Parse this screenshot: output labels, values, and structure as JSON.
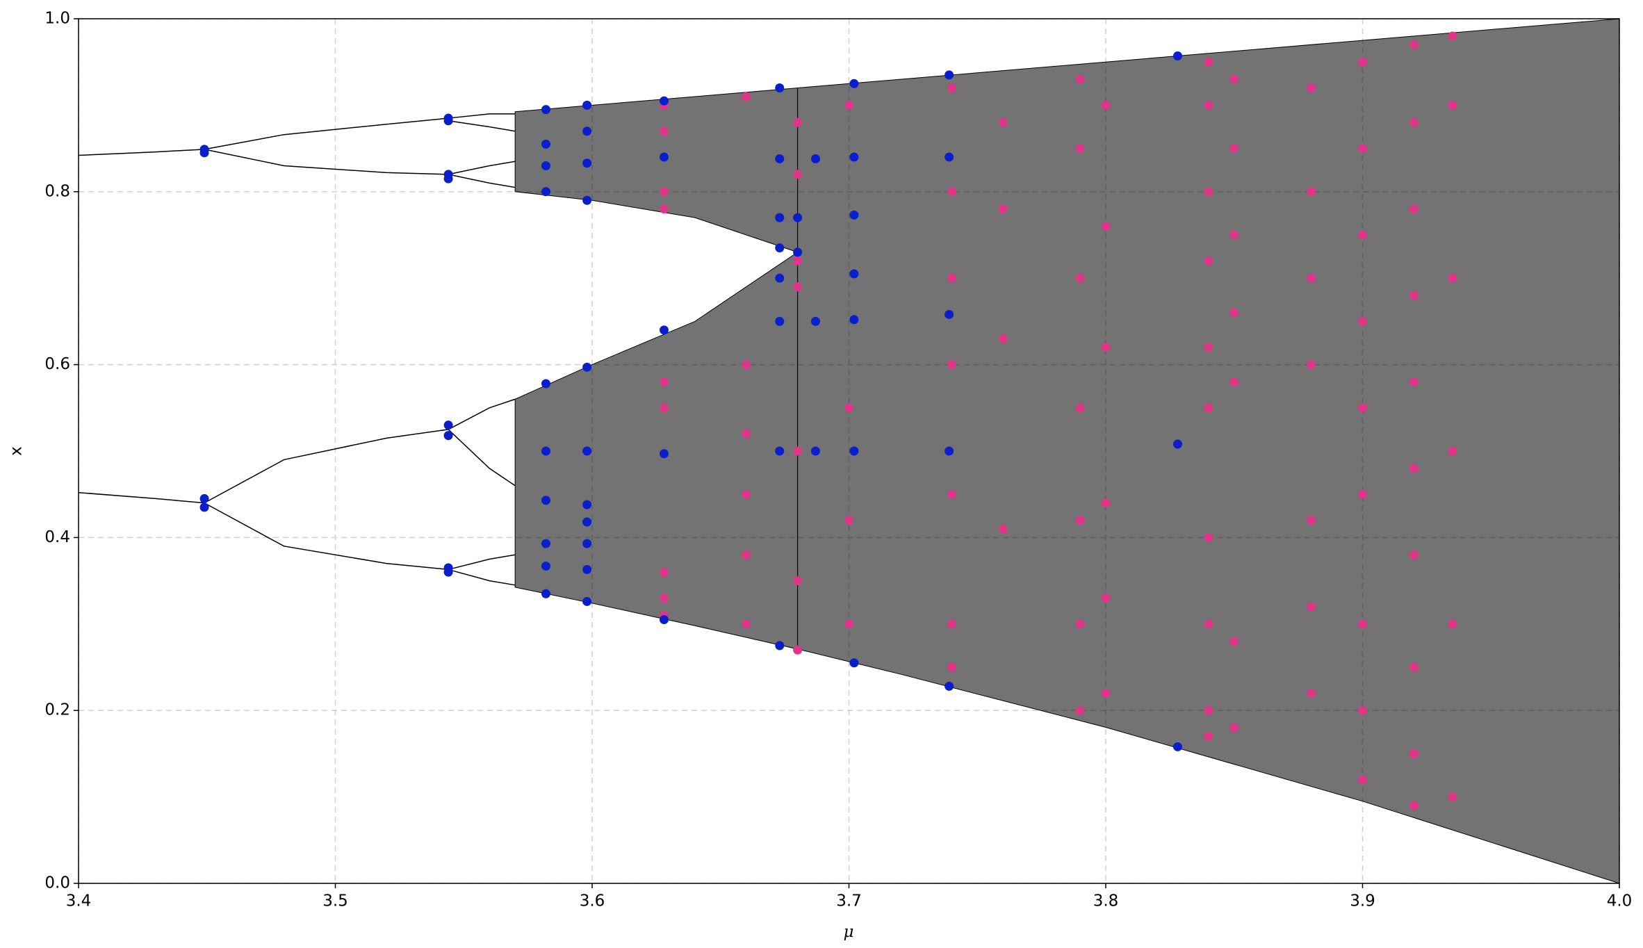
{
  "chart_data": {
    "type": "scatter",
    "x_label": "μ",
    "y_label": "x",
    "xlim": [
      3.4,
      4.0
    ],
    "xticks": [
      3.4,
      3.5,
      3.6,
      3.7,
      3.8,
      3.9,
      {
        "value": 4.0,
        "label": "4.0"
      }
    ],
    "ylim": [
      0,
      1
    ],
    "yticks": [
      {
        "value": 0,
        "label": "0.0"
      },
      0.2,
      0.4,
      0.6,
      0.8,
      {
        "value": 1,
        "label": "1.0"
      }
    ],
    "grid": true,
    "series": [
      {
        "type": "area",
        "color": "#000000",
        "x": [
          3.57,
          3.6,
          3.64,
          3.68
        ],
        "values": [
          0.8925,
          0.9,
          0.91,
          0.92
        ],
        "base": [
          0.8,
          0.79,
          0.77,
          0.73
        ]
      },
      {
        "type": "area",
        "color": "#000000",
        "x": [
          3.57,
          3.6,
          3.64,
          3.68
        ],
        "values": [
          0.56,
          0.6,
          0.65,
          0.73
        ],
        "base": [
          0.3425,
          0.324,
          0.298,
          0.271
        ]
      },
      {
        "type": "area",
        "color": "#000000",
        "x": [
          3.68,
          3.72,
          3.8,
          3.9,
          4.0
        ],
        "values": [
          0.92,
          0.93,
          0.95,
          0.975,
          1.0
        ],
        "base": [
          0.271,
          0.242,
          0.1805,
          0.095,
          0.0
        ]
      },
      {
        "type": "line",
        "color": "#000000",
        "x": [
          3.4,
          3.43,
          3.449
        ],
        "values": [
          0.842,
          0.846,
          0.849
        ]
      },
      {
        "type": "line",
        "color": "#000000",
        "x": [
          3.4,
          3.43,
          3.449
        ],
        "values": [
          0.452,
          0.445,
          0.44
        ]
      },
      {
        "type": "line",
        "color": "#000000",
        "x": [
          3.449,
          3.48,
          3.52,
          3.544
        ],
        "values": [
          0.849,
          0.866,
          0.878,
          0.885
        ]
      },
      {
        "type": "line",
        "color": "#000000",
        "x": [
          3.449,
          3.48,
          3.52,
          3.544
        ],
        "values": [
          0.849,
          0.83,
          0.822,
          0.82
        ]
      },
      {
        "type": "line",
        "color": "#000000",
        "x": [
          3.449,
          3.48,
          3.52,
          3.544
        ],
        "values": [
          0.44,
          0.49,
          0.515,
          0.525
        ]
      },
      {
        "type": "line",
        "color": "#000000",
        "x": [
          3.449,
          3.48,
          3.52,
          3.544
        ],
        "values": [
          0.44,
          0.39,
          0.37,
          0.363
        ]
      },
      {
        "type": "line",
        "color": "#000000",
        "x": [
          3.544,
          3.56,
          3.57
        ],
        "values": [
          0.885,
          0.89,
          0.89
        ]
      },
      {
        "type": "line",
        "color": "#000000",
        "x": [
          3.544,
          3.56,
          3.57
        ],
        "values": [
          0.882,
          0.875,
          0.87
        ]
      },
      {
        "type": "line",
        "color": "#000000",
        "x": [
          3.544,
          3.56,
          3.57
        ],
        "values": [
          0.82,
          0.83,
          0.835
        ]
      },
      {
        "type": "line",
        "color": "#000000",
        "x": [
          3.544,
          3.56,
          3.57
        ],
        "values": [
          0.82,
          0.81,
          0.805
        ]
      },
      {
        "type": "line",
        "color": "#000000",
        "x": [
          3.544,
          3.56,
          3.57
        ],
        "values": [
          0.525,
          0.55,
          0.56
        ]
      },
      {
        "type": "line",
        "color": "#000000",
        "x": [
          3.544,
          3.56,
          3.57
        ],
        "values": [
          0.525,
          0.48,
          0.46
        ]
      },
      {
        "type": "line",
        "color": "#000000",
        "x": [
          3.544,
          3.56,
          3.57
        ],
        "values": [
          0.363,
          0.375,
          0.38
        ]
      },
      {
        "type": "line",
        "color": "#000000",
        "x": [
          3.544,
          3.56,
          3.57
        ],
        "values": [
          0.363,
          0.35,
          0.345
        ]
      },
      {
        "type": "points",
        "color": "#e0358a",
        "x": [
          3.628,
          3.628,
          3.628,
          3.628,
          3.628,
          3.628,
          3.628,
          3.628,
          3.628,
          3.66,
          3.66,
          3.66,
          3.66,
          3.66,
          3.66,
          3.68,
          3.68,
          3.68,
          3.68,
          3.68,
          3.68,
          3.68,
          3.7,
          3.7,
          3.7,
          3.7,
          3.74,
          3.74,
          3.74,
          3.74,
          3.74,
          3.74,
          3.74,
          3.76,
          3.76,
          3.76,
          3.76,
          3.79,
          3.79,
          3.79,
          3.79,
          3.79,
          3.79,
          3.79,
          3.8,
          3.8,
          3.8,
          3.8,
          3.8,
          3.8,
          3.84,
          3.84,
          3.84,
          3.84,
          3.84,
          3.84,
          3.84,
          3.84,
          3.84,
          3.84,
          3.85,
          3.85,
          3.85,
          3.85,
          3.85,
          3.85,
          3.85,
          3.88,
          3.88,
          3.88,
          3.88,
          3.88,
          3.88,
          3.88,
          3.9,
          3.9,
          3.9,
          3.9,
          3.9,
          3.9,
          3.9,
          3.9,
          3.9,
          3.92,
          3.92,
          3.92,
          3.92,
          3.92,
          3.92,
          3.92,
          3.92,
          3.92,
          3.92,
          3.935,
          3.935,
          3.935,
          3.935,
          3.935,
          3.935
        ],
        "values": [
          0.9,
          0.87,
          0.8,
          0.78,
          0.58,
          0.55,
          0.36,
          0.33,
          0.31,
          0.91,
          0.6,
          0.52,
          0.45,
          0.38,
          0.3,
          0.88,
          0.82,
          0.72,
          0.69,
          0.5,
          0.35,
          0.27,
          0.9,
          0.55,
          0.42,
          0.3,
          0.92,
          0.8,
          0.7,
          0.6,
          0.45,
          0.3,
          0.25,
          0.88,
          0.78,
          0.63,
          0.41,
          0.93,
          0.85,
          0.7,
          0.55,
          0.42,
          0.3,
          0.2,
          0.9,
          0.76,
          0.62,
          0.44,
          0.33,
          0.22,
          0.95,
          0.9,
          0.8,
          0.72,
          0.62,
          0.55,
          0.4,
          0.3,
          0.2,
          0.17,
          0.93,
          0.85,
          0.75,
          0.66,
          0.58,
          0.28,
          0.18,
          0.92,
          0.8,
          0.7,
          0.6,
          0.42,
          0.32,
          0.22,
          0.95,
          0.85,
          0.75,
          0.65,
          0.55,
          0.45,
          0.3,
          0.2,
          0.12,
          0.97,
          0.88,
          0.78,
          0.68,
          0.58,
          0.48,
          0.38,
          0.25,
          0.15,
          0.09,
          0.98,
          0.9,
          0.7,
          0.5,
          0.3,
          0.1
        ]
      },
      {
        "type": "points",
        "color": "#0a1ecc",
        "x": [
          3.449,
          3.449,
          3.449,
          3.449,
          3.544,
          3.544,
          3.544,
          3.544,
          3.544,
          3.544,
          3.544,
          3.544,
          3.582,
          3.582,
          3.582,
          3.582,
          3.582,
          3.582,
          3.582,
          3.582,
          3.582,
          3.582,
          3.598,
          3.598,
          3.598,
          3.598,
          3.598,
          3.598,
          3.598,
          3.598,
          3.598,
          3.598,
          3.598,
          3.628,
          3.628,
          3.628,
          3.628,
          3.628,
          3.673,
          3.673,
          3.673,
          3.673,
          3.673,
          3.673,
          3.673,
          3.673,
          3.68,
          3.68,
          3.687,
          3.687,
          3.687,
          3.702,
          3.702,
          3.702,
          3.702,
          3.702,
          3.702,
          3.702,
          3.739,
          3.739,
          3.739,
          3.739,
          3.739,
          3.828,
          3.828,
          3.828
        ],
        "values": [
          0.849,
          0.845,
          0.445,
          0.435,
          0.885,
          0.882,
          0.82,
          0.815,
          0.53,
          0.518,
          0.365,
          0.36,
          0.895,
          0.855,
          0.83,
          0.8,
          0.578,
          0.5,
          0.443,
          0.393,
          0.367,
          0.335,
          0.9,
          0.87,
          0.833,
          0.79,
          0.597,
          0.5,
          0.438,
          0.418,
          0.393,
          0.363,
          0.326,
          0.905,
          0.84,
          0.64,
          0.497,
          0.305,
          0.92,
          0.838,
          0.77,
          0.735,
          0.7,
          0.65,
          0.5,
          0.275,
          0.77,
          0.73,
          0.838,
          0.65,
          0.5,
          0.925,
          0.84,
          0.773,
          0.705,
          0.652,
          0.5,
          0.255,
          0.935,
          0.84,
          0.658,
          0.5,
          0.228,
          0.957,
          0.508,
          0.158
        ]
      }
    ]
  }
}
